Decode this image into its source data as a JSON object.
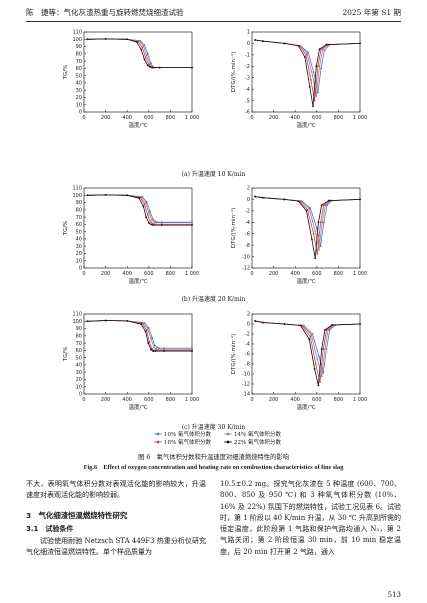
{
  "header": {
    "left": "陈　捷等：气化灰渣热重与旋转燃焚烧细渣试验",
    "right": "2025 年第 S1 期"
  },
  "axes": {
    "tg_ylabel": "TG/%",
    "dtg_ylabel": "DTG/(%·min⁻¹)",
    "xlabel": "温度/℃",
    "x_ticks": [
      "0",
      "200",
      "400",
      "600",
      "800",
      "1 000"
    ],
    "tg_ticks": [
      "0",
      "10",
      "20",
      "30",
      "40",
      "50",
      "60",
      "70",
      "80",
      "90",
      "100",
      "110"
    ]
  },
  "subcaptions": [
    "(a) 升温速度 10 K/min",
    "(b) 升温速度 20 K/min",
    "(c) 升温速度 30 K/min"
  ],
  "legend": {
    "items": [
      "10% 氧气体积分数",
      "14% 氧气体积分数",
      "18% 氧气体积分数",
      "22% 氧气体积分数"
    ],
    "colors": [
      "#5a6fd6",
      "#8a8a8a",
      "#e0383e",
      "#111111"
    ]
  },
  "figure_caption_cn": "图 6　氧气体积分数和升温速度对细渣燃烧特性的影响",
  "figure_caption_en": "Fig.6　Effect of oxygen concentration and heating rate on combustion characteristics of fine slag",
  "chart_data": [
    {
      "type": "line",
      "panel": "a-TG",
      "xlabel": "温度/℃",
      "ylabel": "TG/%",
      "xlim": [
        0,
        1000
      ],
      "ylim": [
        0,
        110
      ],
      "series": [
        {
          "name": "10% 氧气体积分数",
          "x": [
            30,
            200,
            400,
            520,
            560,
            590,
            620,
            640,
            660,
            700,
            1000
          ],
          "y": [
            100,
            100.5,
            100,
            98,
            92,
            80,
            67,
            62,
            61,
            61,
            61
          ]
        },
        {
          "name": "14% 氧气体积分数",
          "x": [
            30,
            200,
            400,
            510,
            550,
            580,
            610,
            630,
            650,
            700,
            1000
          ],
          "y": [
            100,
            100.5,
            100,
            98,
            91,
            78,
            66,
            62,
            61,
            61,
            61
          ]
        },
        {
          "name": "18% 氧气体积分数",
          "x": [
            30,
            200,
            400,
            500,
            540,
            570,
            600,
            620,
            640,
            700,
            1000
          ],
          "y": [
            100,
            100.5,
            100,
            97,
            89,
            75,
            65,
            62,
            61,
            61,
            61
          ]
        },
        {
          "name": "22% 氧气体积分数",
          "x": [
            30,
            200,
            400,
            490,
            530,
            560,
            590,
            610,
            630,
            700,
            1000
          ],
          "y": [
            100,
            100.5,
            100,
            96,
            86,
            72,
            64,
            62,
            61,
            61,
            61
          ]
        }
      ]
    },
    {
      "type": "line",
      "panel": "a-DTG",
      "xlabel": "温度/℃",
      "ylabel": "DTG/(%·min⁻¹)",
      "xlim": [
        0,
        1000
      ],
      "ylim": [
        -6,
        1
      ],
      "series": [
        {
          "name": "10% 氧气体积分数",
          "x": [
            30,
            100,
            300,
            450,
            520,
            570,
            610,
            640,
            670,
            720,
            1000
          ],
          "y": [
            0.3,
            0.2,
            0,
            -0.2,
            -0.8,
            -2.5,
            -4.3,
            -2.2,
            -0.6,
            -0.1,
            0
          ]
        },
        {
          "name": "14% 氧气体积分数",
          "x": [
            30,
            100,
            300,
            450,
            510,
            560,
            595,
            625,
            655,
            710,
            1000
          ],
          "y": [
            0.3,
            0.2,
            0,
            -0.2,
            -0.9,
            -2.8,
            -4.6,
            -2.0,
            -0.5,
            -0.1,
            0
          ]
        },
        {
          "name": "18% 氧气体积分数",
          "x": [
            30,
            100,
            300,
            440,
            500,
            545,
            580,
            610,
            640,
            700,
            1000
          ],
          "y": [
            0.3,
            0.2,
            0,
            -0.2,
            -1.0,
            -3.2,
            -5.0,
            -2.0,
            -0.5,
            -0.1,
            0
          ]
        },
        {
          "name": "22% 氧气体积分数",
          "x": [
            30,
            100,
            300,
            430,
            490,
            535,
            565,
            595,
            625,
            690,
            1000
          ],
          "y": [
            0.3,
            0.2,
            0,
            -0.2,
            -1.2,
            -3.8,
            -5.5,
            -2.0,
            -0.5,
            -0.1,
            0
          ]
        }
      ]
    },
    {
      "type": "line",
      "panel": "b-TG",
      "xlabel": "温度/℃",
      "ylabel": "TG/%",
      "xlim": [
        0,
        1000
      ],
      "ylim": [
        0,
        110
      ],
      "series": [
        {
          "name": "10% 氧气体积分数",
          "x": [
            30,
            200,
            400,
            540,
            580,
            610,
            640,
            660,
            680,
            720,
            1000
          ],
          "y": [
            100,
            100.5,
            100,
            98,
            91,
            78,
            67,
            64,
            63,
            63,
            63
          ]
        },
        {
          "name": "14% 氧气体积分数",
          "x": [
            30,
            200,
            400,
            530,
            570,
            600,
            630,
            650,
            670,
            720,
            1000
          ],
          "y": [
            100,
            100.5,
            100,
            97,
            90,
            76,
            66,
            63,
            62,
            62,
            62
          ]
        },
        {
          "name": "18% 氧气体积分数",
          "x": [
            30,
            200,
            400,
            520,
            560,
            590,
            615,
            635,
            655,
            720,
            1000
          ],
          "y": [
            100,
            100.5,
            100,
            97,
            88,
            73,
            64,
            61,
            60,
            60,
            60
          ]
        },
        {
          "name": "22% 氧气体积分数",
          "x": [
            30,
            200,
            400,
            510,
            550,
            575,
            600,
            620,
            640,
            720,
            1000
          ],
          "y": [
            100,
            100.5,
            100,
            96,
            85,
            70,
            62,
            60,
            59,
            59,
            59
          ]
        }
      ]
    },
    {
      "type": "line",
      "panel": "b-DTG",
      "xlabel": "温度/℃",
      "ylabel": "DTG/(%·min⁻¹)",
      "xlim": [
        0,
        1000
      ],
      "ylim": [
        -12,
        2
      ],
      "series": [
        {
          "name": "10% 氧气体积分数",
          "x": [
            30,
            100,
            300,
            460,
            540,
            600,
            635,
            665,
            695,
            740,
            1000
          ],
          "y": [
            0.5,
            0.3,
            0,
            -0.3,
            -1.5,
            -5,
            -8.2,
            -4,
            -1,
            -0.2,
            0
          ]
        },
        {
          "name": "14% 氧气体积分数",
          "x": [
            30,
            100,
            300,
            450,
            530,
            585,
            620,
            650,
            680,
            730,
            1000
          ],
          "y": [
            0.5,
            0.3,
            0,
            -0.3,
            -1.6,
            -5.5,
            -8.8,
            -4,
            -1,
            -0.2,
            0
          ]
        },
        {
          "name": "18% 氧气体积分数",
          "x": [
            30,
            100,
            300,
            440,
            515,
            570,
            605,
            635,
            665,
            720,
            1000
          ],
          "y": [
            0.5,
            0.3,
            0,
            -0.3,
            -1.8,
            -6,
            -9.5,
            -4,
            -1,
            -0.2,
            0
          ]
        },
        {
          "name": "22% 氧气体积分数",
          "x": [
            30,
            100,
            300,
            430,
            505,
            555,
            585,
            615,
            645,
            710,
            1000
          ],
          "y": [
            0.5,
            0.3,
            0,
            -0.3,
            -2,
            -7,
            -10.3,
            -4,
            -1,
            -0.2,
            0
          ]
        }
      ]
    },
    {
      "type": "line",
      "panel": "c-TG",
      "xlabel": "温度/℃",
      "ylabel": "TG/%",
      "xlim": [
        0,
        1000
      ],
      "ylim": [
        0,
        110
      ],
      "series": [
        {
          "name": "10% 氧气体积分数",
          "x": [
            30,
            200,
            400,
            560,
            600,
            630,
            655,
            675,
            695,
            740,
            1000
          ],
          "y": [
            100,
            101,
            100.5,
            98,
            91,
            78,
            67,
            64,
            63,
            63,
            63
          ]
        },
        {
          "name": "14% 氧气体积分数",
          "x": [
            30,
            200,
            400,
            550,
            590,
            620,
            645,
            665,
            685,
            740,
            1000
          ],
          "y": [
            100,
            101,
            100.5,
            97,
            90,
            76,
            65,
            62,
            61,
            61,
            61
          ]
        },
        {
          "name": "18% 氧气体积分数",
          "x": [
            30,
            200,
            400,
            540,
            580,
            605,
            630,
            650,
            670,
            740,
            1000
          ],
          "y": [
            100,
            101,
            100.5,
            97,
            88,
            72,
            62,
            60,
            60,
            60,
            60
          ]
        },
        {
          "name": "22% 氧气体积分数",
          "x": [
            30,
            200,
            400,
            530,
            570,
            595,
            620,
            640,
            660,
            740,
            1000
          ],
          "y": [
            100,
            101,
            100.5,
            96,
            86,
            70,
            61,
            59,
            59,
            59,
            59
          ]
        }
      ]
    },
    {
      "type": "line",
      "panel": "c-DTG",
      "xlabel": "温度/℃",
      "ylabel": "DTG/(%·min⁻¹)",
      "xlim": [
        0,
        1000
      ],
      "ylim": [
        -14,
        2
      ],
      "series": [
        {
          "name": "10% 氧气体积分数",
          "x": [
            30,
            100,
            300,
            480,
            560,
            620,
            660,
            690,
            720,
            770,
            1000
          ],
          "y": [
            0.6,
            0.3,
            0,
            -0.3,
            -2,
            -6.5,
            -9.8,
            -5,
            -1.2,
            -0.2,
            0
          ]
        },
        {
          "name": "14% 氧气体积分数",
          "x": [
            30,
            100,
            300,
            470,
            550,
            605,
            645,
            675,
            705,
            760,
            1000
          ],
          "y": [
            0.6,
            0.3,
            0,
            -0.3,
            -2.2,
            -7,
            -10.5,
            -5,
            -1.2,
            -0.2,
            0
          ]
        },
        {
          "name": "18% 氧气体积分数",
          "x": [
            30,
            100,
            300,
            460,
            540,
            590,
            630,
            660,
            690,
            750,
            1000
          ],
          "y": [
            0.6,
            0.3,
            0,
            -0.3,
            -2.5,
            -8,
            -11.6,
            -5,
            -1.2,
            -0.2,
            0
          ]
        },
        {
          "name": "22% 氧气体积分数",
          "x": [
            30,
            100,
            300,
            450,
            530,
            580,
            615,
            645,
            675,
            740,
            1000
          ],
          "y": [
            0.6,
            0.3,
            0,
            -0.3,
            -3,
            -9,
            -12.3,
            -5,
            -1.2,
            -0.2,
            0
          ]
        }
      ]
    }
  ],
  "body": {
    "left_p1": "不大，表明氧气体积分数对表观活化能的影响较大，升温速度对表观活化能的影响较弱。",
    "sec3": "3　气化细渣恒温燃烧特性研究",
    "sec31": "3.1　试验条件",
    "left_p2": "试验使用耐驰 Netzsch STA 449F3 热重分析仪研究气化细渣恒温燃烧特性。单个样品质量为",
    "right_p": "10.5±0.2 mg。探究气化灰渣在 5 种温度 (600、700、800、850 及 950 ℃) 和 3 种氧气体积分数 (10%、16% 及 22%) 氛围下的燃烧特性，试验工况见表 6。试验时，第 1 阶段以 40 K/min 升温，从 30 ℃ 升高到所需的恒定温度，此阶段第 1 气路和保护气路均通入 N₂，第 2 气路关闭；第 2 阶段恒温 30 min，前 10 min 稳定温度，后 20 min 打开第 2 气路，通入"
  },
  "page_number": "513"
}
